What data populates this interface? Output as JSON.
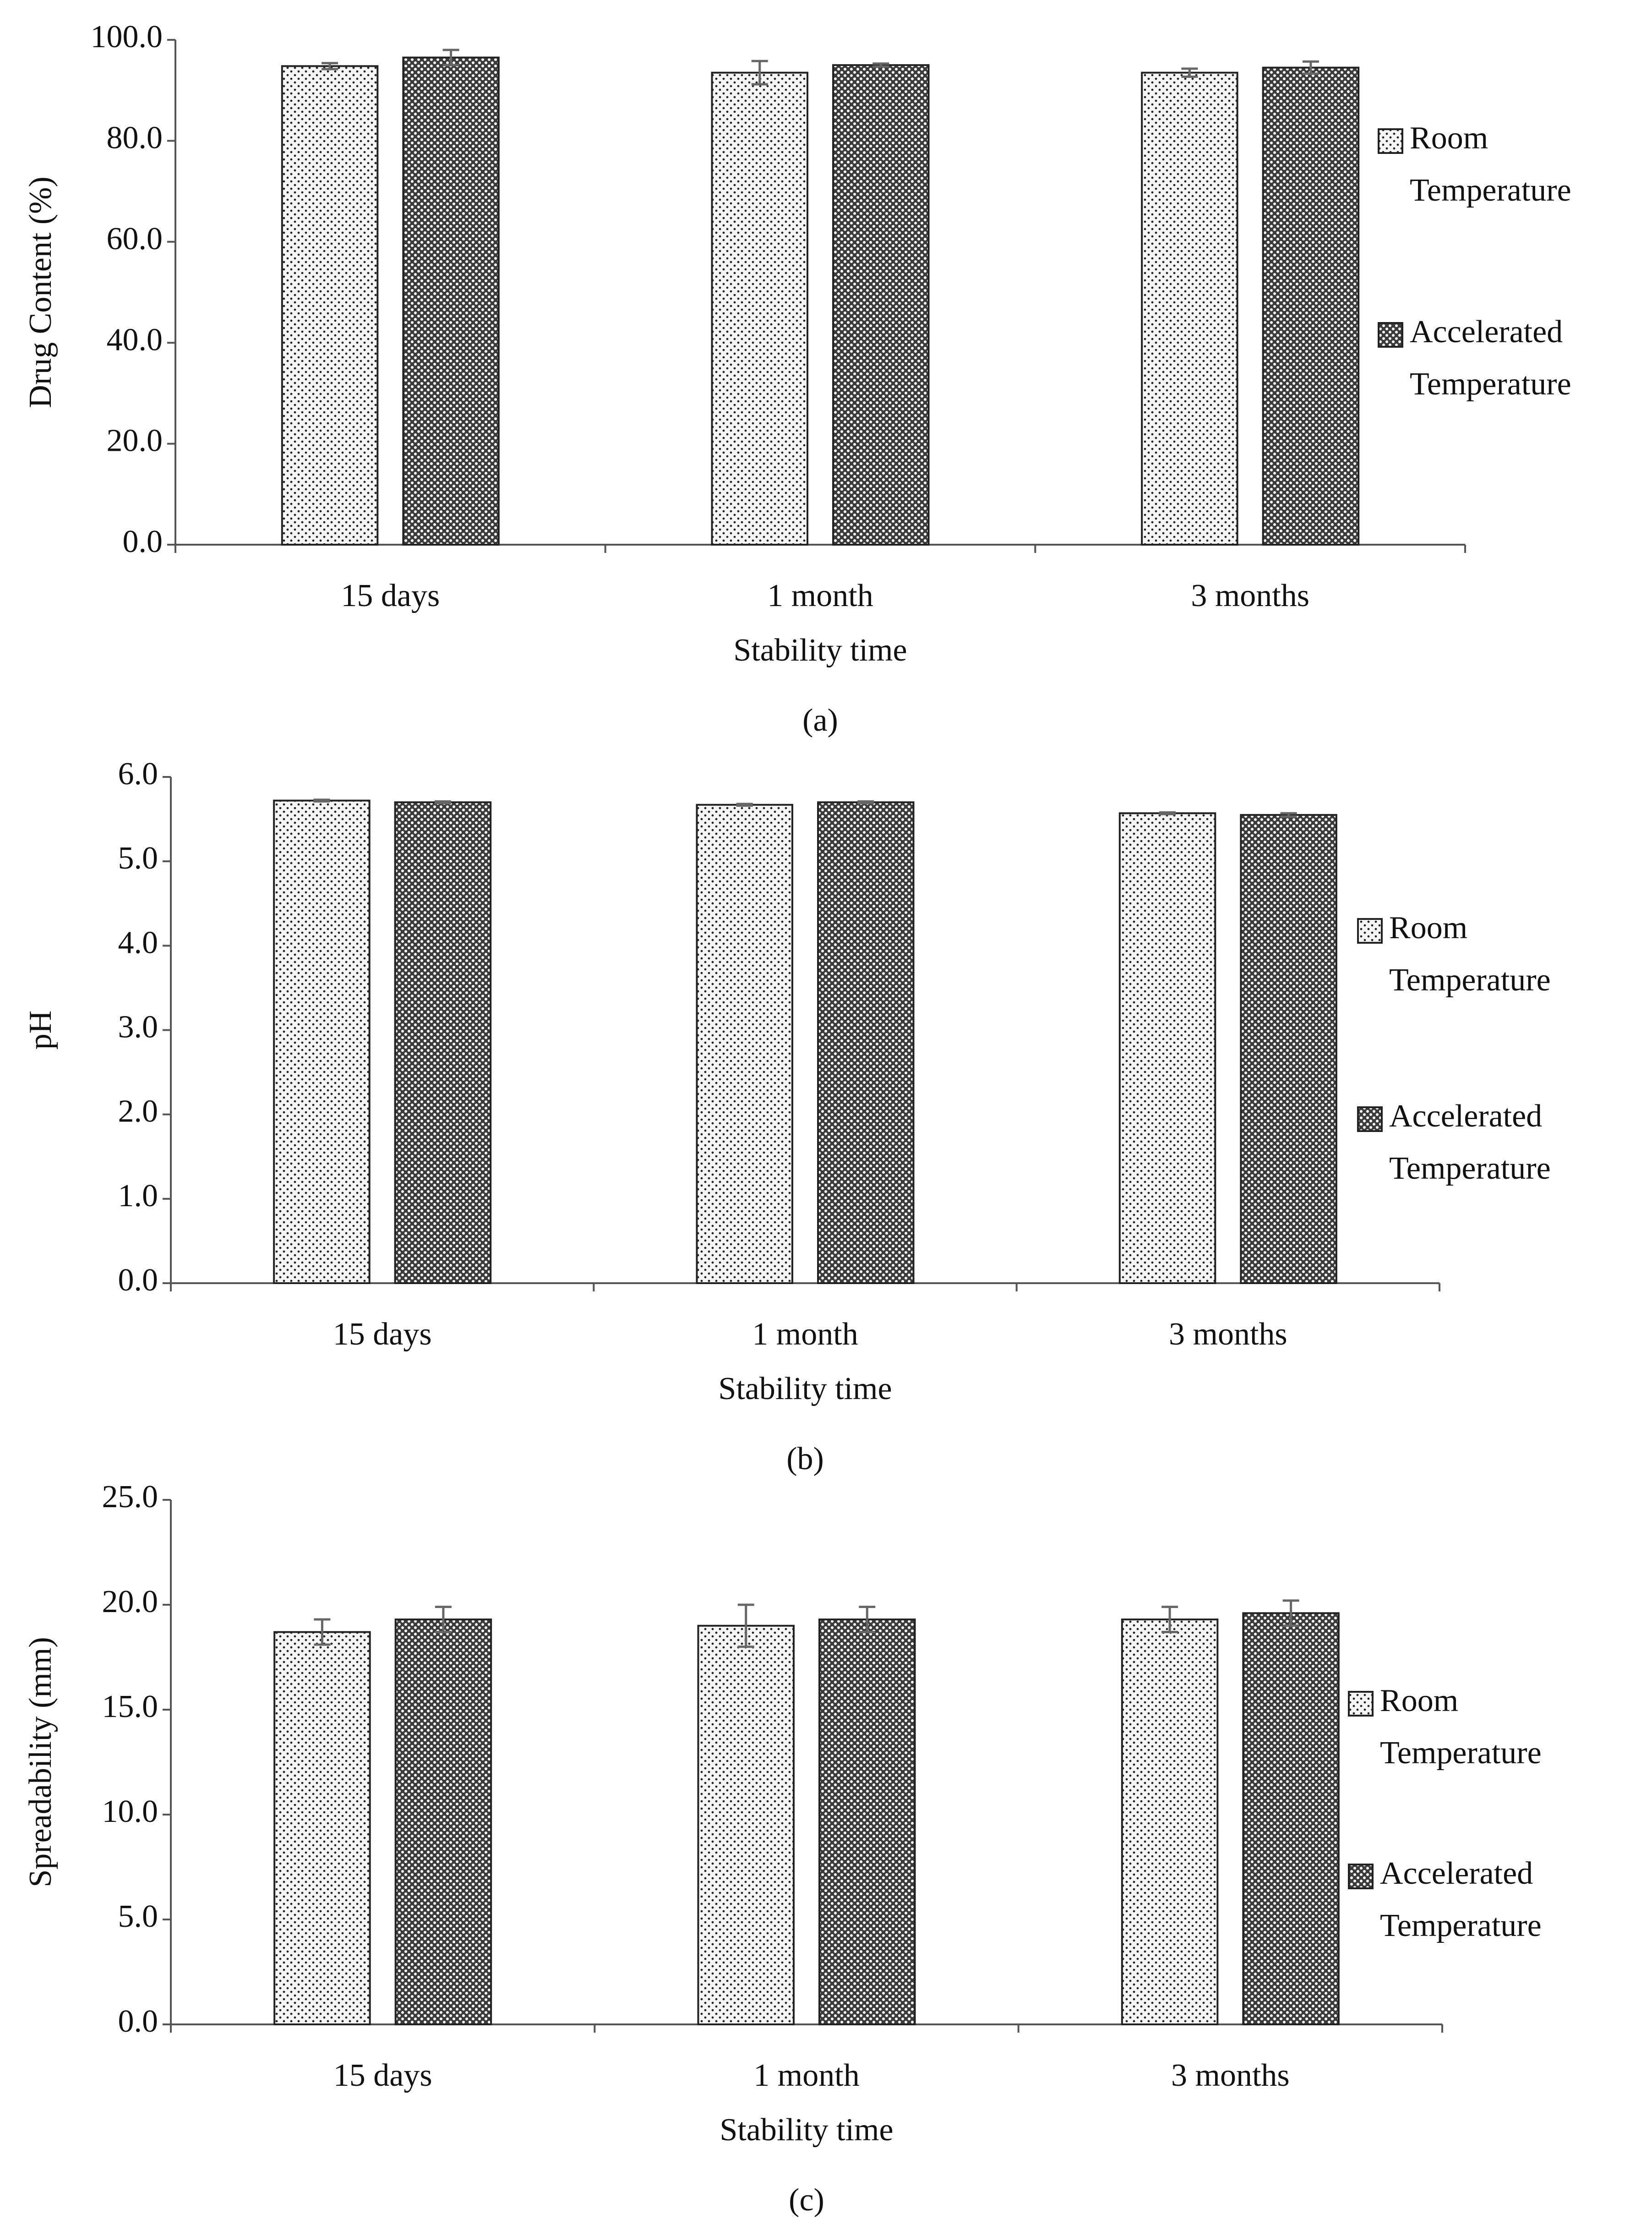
{
  "chart_data": [
    {
      "type": "bar",
      "caption": "(a)",
      "y_label": "Drug Content (%)",
      "x_label": "Stability time",
      "categories": [
        "15 days",
        "1 month",
        "3 months"
      ],
      "series": [
        {
          "name": "Room Temperature",
          "color": "#f4f4f4",
          "values": [
            94.8,
            93.5,
            93.5
          ],
          "errors": [
            0.6,
            2.3,
            0.8
          ]
        },
        {
          "name": "Accelerated Temperature",
          "color": "#3c3c3c",
          "values": [
            96.5,
            95.0,
            94.5
          ],
          "errors": [
            1.5,
            0.3,
            1.2
          ]
        }
      ],
      "ylim": [
        0,
        100
      ],
      "yticks": [
        {
          "value": 0,
          "label": "0.0"
        },
        {
          "value": 20,
          "label": "20.0"
        },
        {
          "value": 40,
          "label": "40.0"
        },
        {
          "value": 60,
          "label": "60.0"
        },
        {
          "value": 80,
          "label": "80.0"
        },
        {
          "value": 100,
          "label": "100.0"
        }
      ],
      "grid": false,
      "legend": "right"
    },
    {
      "type": "bar",
      "caption": "(b)",
      "y_label": "pH",
      "x_label": "Stability time",
      "categories": [
        "15 days",
        "1 month",
        "3 months"
      ],
      "series": [
        {
          "name": "Room Temperature",
          "color": "#f4f4f4",
          "values": [
            5.72,
            5.67,
            5.57
          ],
          "errors": [
            0.01,
            0.01,
            0.01
          ]
        },
        {
          "name": "Accelerated Temperature",
          "color": "#3c3c3c",
          "values": [
            5.7,
            5.7,
            5.55
          ],
          "errors": [
            0.01,
            0.01,
            0.02
          ]
        }
      ],
      "ylim": [
        0,
        6
      ],
      "yticks": [
        {
          "value": 0,
          "label": "0.0"
        },
        {
          "value": 1,
          "label": "1.0"
        },
        {
          "value": 2,
          "label": "2.0"
        },
        {
          "value": 3,
          "label": "3.0"
        },
        {
          "value": 4,
          "label": "4.0"
        },
        {
          "value": 5,
          "label": "5.0"
        },
        {
          "value": 6,
          "label": "6.0"
        }
      ],
      "grid": false,
      "legend": "right"
    },
    {
      "type": "bar",
      "caption": "(c)",
      "y_label": "Spreadability (mm)",
      "x_label": "Stability time",
      "categories": [
        "15 days",
        "1 month",
        "3 months"
      ],
      "series": [
        {
          "name": "Room Temperature",
          "color": "#f4f4f4",
          "values": [
            18.7,
            19.0,
            19.3
          ],
          "errors": [
            0.6,
            1.0,
            0.6
          ]
        },
        {
          "name": "Accelerated Temperature",
          "color": "#3c3c3c",
          "values": [
            19.3,
            19.3,
            19.6
          ],
          "errors": [
            0.6,
            0.6,
            0.6
          ]
        }
      ],
      "ylim": [
        0,
        25
      ],
      "yticks": [
        {
          "value": 0,
          "label": "0.0"
        },
        {
          "value": 5,
          "label": "5.0"
        },
        {
          "value": 10,
          "label": "10.0"
        },
        {
          "value": 15,
          "label": "15.0"
        },
        {
          "value": 20,
          "label": "20.0"
        },
        {
          "value": 25,
          "label": "25.0"
        }
      ],
      "grid": false,
      "legend": "right"
    }
  ]
}
